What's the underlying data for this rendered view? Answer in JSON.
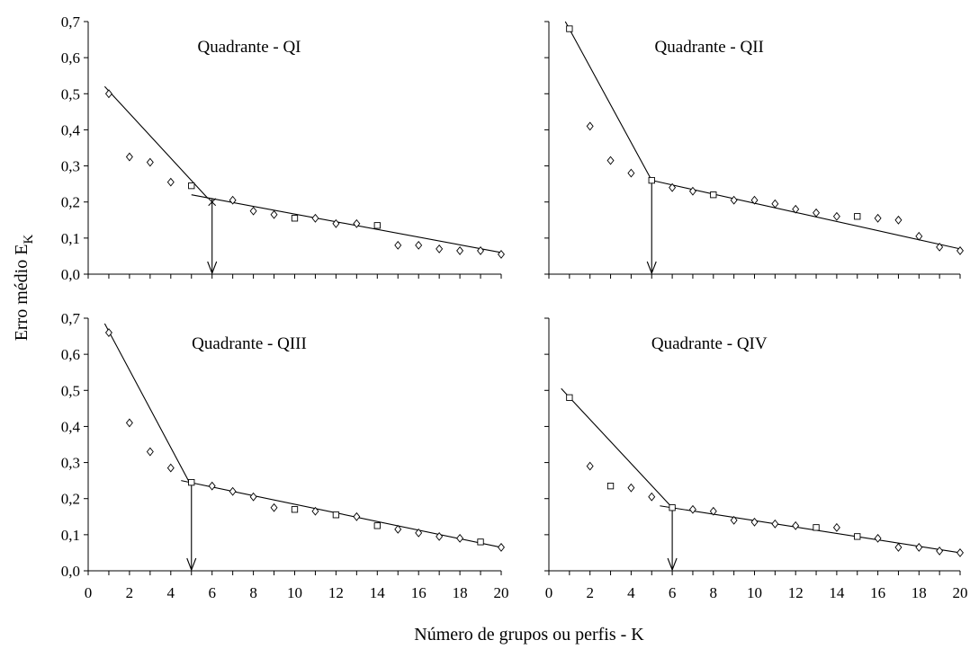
{
  "figure": {
    "ylabel_main": "Erro médio E",
    "ylabel_sub": "K",
    "xlabel": "Número de grupos ou perfis - K"
  },
  "chart_data": [
    {
      "type": "scatter",
      "title": "Quadrante - QI",
      "xlabel": "Número de grupos ou perfis - K",
      "ylabel": "Erro médio E_K",
      "xlim": [
        0,
        20
      ],
      "ylim": [
        0,
        0.7
      ],
      "xticks": [
        "0",
        "2",
        "4",
        "6",
        "8",
        "10",
        "12",
        "14",
        "16",
        "18",
        "20"
      ],
      "yticks": [
        "0,0",
        "0,1",
        "0,2",
        "0,3",
        "0,4",
        "0,5",
        "0,6",
        "0,7"
      ],
      "x": [
        1,
        2,
        3,
        4,
        5,
        6,
        7,
        8,
        9,
        10,
        11,
        12,
        13,
        14,
        15,
        16,
        17,
        18,
        19,
        20
      ],
      "y": [
        0.5,
        0.325,
        0.31,
        0.255,
        0.245,
        0.2,
        0.205,
        0.175,
        0.165,
        0.155,
        0.155,
        0.14,
        0.14,
        0.135,
        0.08,
        0.08,
        0.07,
        0.065,
        0.065,
        0.055
      ],
      "markers": [
        "d",
        "d",
        "d",
        "d",
        "s",
        "x",
        "d",
        "d",
        "d",
        "s",
        "d",
        "d",
        "d",
        "s",
        "d",
        "d",
        "d",
        "d",
        "d",
        "d"
      ],
      "fit_lines": [
        {
          "x": [
            0.8,
            5.8
          ],
          "y": [
            0.52,
            0.21
          ]
        },
        {
          "x": [
            5.0,
            20.0
          ],
          "y": [
            0.22,
            0.06
          ]
        }
      ],
      "optimal_k": 6,
      "optimal_k_from_y": 0.21
    },
    {
      "type": "scatter",
      "title": "Quadrante - QII",
      "xlabel": "Número de grupos ou perfis - K",
      "ylabel": "Erro médio E_K",
      "xlim": [
        0,
        20
      ],
      "ylim": [
        0,
        0.7
      ],
      "xticks": [
        "0",
        "2",
        "4",
        "6",
        "8",
        "10",
        "12",
        "14",
        "16",
        "18",
        "20"
      ],
      "yticks": [
        "0,0",
        "0,1",
        "0,2",
        "0,3",
        "0,4",
        "0,5",
        "0,6",
        "0,7"
      ],
      "x": [
        1,
        2,
        3,
        4,
        5,
        6,
        7,
        8,
        9,
        10,
        11,
        12,
        13,
        14,
        15,
        16,
        17,
        18,
        19,
        20
      ],
      "y": [
        0.68,
        0.41,
        0.315,
        0.28,
        0.26,
        0.24,
        0.23,
        0.22,
        0.205,
        0.205,
        0.195,
        0.18,
        0.17,
        0.16,
        0.16,
        0.155,
        0.15,
        0.105,
        0.075,
        0.065
      ],
      "markers": [
        "s",
        "d",
        "d",
        "d",
        "s",
        "d",
        "d",
        "s",
        "d",
        "d",
        "d",
        "d",
        "d",
        "d",
        "s",
        "d",
        "d",
        "d",
        "d",
        "d"
      ],
      "fit_lines": [
        {
          "x": [
            0.8,
            5.0
          ],
          "y": [
            0.7,
            0.26
          ]
        },
        {
          "x": [
            5.0,
            20.0
          ],
          "y": [
            0.26,
            0.07
          ]
        }
      ],
      "optimal_k": 5,
      "optimal_k_from_y": 0.26
    },
    {
      "type": "scatter",
      "title": "Quadrante - QIII",
      "xlabel": "Número de grupos ou perfis - K",
      "ylabel": "Erro médio E_K",
      "xlim": [
        0,
        20
      ],
      "ylim": [
        0,
        0.7
      ],
      "xticks": [
        "0",
        "2",
        "4",
        "6",
        "8",
        "10",
        "12",
        "14",
        "16",
        "18",
        "20"
      ],
      "yticks": [
        "0,0",
        "0,1",
        "0,2",
        "0,3",
        "0,4",
        "0,5",
        "0,6",
        "0,7"
      ],
      "x": [
        1,
        2,
        3,
        4,
        5,
        6,
        7,
        8,
        9,
        10,
        11,
        12,
        13,
        14,
        15,
        16,
        17,
        18,
        19,
        20
      ],
      "y": [
        0.66,
        0.41,
        0.33,
        0.285,
        0.245,
        0.235,
        0.22,
        0.205,
        0.175,
        0.17,
        0.165,
        0.155,
        0.15,
        0.125,
        0.115,
        0.105,
        0.095,
        0.09,
        0.08,
        0.065
      ],
      "markers": [
        "d",
        "d",
        "d",
        "d",
        "s",
        "d",
        "d",
        "d",
        "d",
        "s",
        "d",
        "s",
        "d",
        "s",
        "d",
        "d",
        "d",
        "d",
        "s",
        "d"
      ],
      "fit_lines": [
        {
          "x": [
            0.8,
            4.9
          ],
          "y": [
            0.685,
            0.245
          ]
        },
        {
          "x": [
            4.5,
            20.0
          ],
          "y": [
            0.25,
            0.065
          ]
        }
      ],
      "optimal_k": 5,
      "optimal_k_from_y": 0.245
    },
    {
      "type": "scatter",
      "title": "Quadrante - QIV",
      "xlabel": "Número de grupos ou perfis - K",
      "ylabel": "Erro médio E_K",
      "xlim": [
        0,
        20
      ],
      "ylim": [
        0,
        0.7
      ],
      "xticks": [
        "0",
        "2",
        "4",
        "6",
        "8",
        "10",
        "12",
        "14",
        "16",
        "18",
        "20"
      ],
      "yticks": [
        "0,0",
        "0,1",
        "0,2",
        "0,3",
        "0,4",
        "0,5",
        "0,6",
        "0,7"
      ],
      "x": [
        1,
        2,
        3,
        4,
        5,
        6,
        7,
        8,
        9,
        10,
        11,
        12,
        13,
        14,
        15,
        16,
        17,
        18,
        19,
        20
      ],
      "y": [
        0.48,
        0.29,
        0.235,
        0.23,
        0.205,
        0.175,
        0.17,
        0.165,
        0.14,
        0.135,
        0.13,
        0.125,
        0.12,
        0.12,
        0.095,
        0.09,
        0.065,
        0.065,
        0.055,
        0.05
      ],
      "markers": [
        "s",
        "d",
        "s",
        "d",
        "d",
        "s",
        "d",
        "d",
        "d",
        "d",
        "d",
        "d",
        "s",
        "d",
        "s",
        "d",
        "d",
        "d",
        "d",
        "d"
      ],
      "fit_lines": [
        {
          "x": [
            0.6,
            6.0
          ],
          "y": [
            0.505,
            0.175
          ]
        },
        {
          "x": [
            5.4,
            20.0
          ],
          "y": [
            0.18,
            0.05
          ]
        }
      ],
      "optimal_k": 6,
      "optimal_k_from_y": 0.175
    }
  ]
}
